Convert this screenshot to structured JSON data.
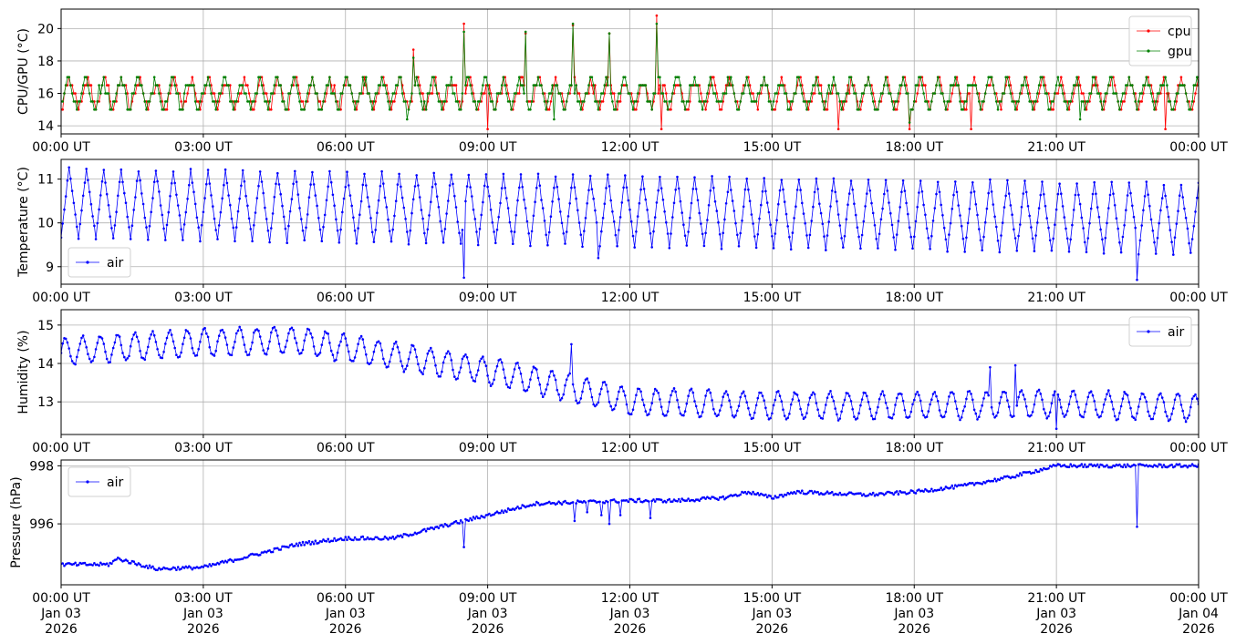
{
  "chart_data": [
    {
      "type": "line",
      "ylabel": "CPU/GPU (°C)",
      "ylim": [
        13.5,
        21.2
      ],
      "yticks": [
        14,
        16,
        18,
        20
      ],
      "x_ticks": [
        "00:00 UT",
        "03:00 UT",
        "06:00 UT",
        "09:00 UT",
        "12:00 UT",
        "15:00 UT",
        "18:00 UT",
        "21:00 UT",
        "00:00 UT"
      ],
      "x_range_hours": [
        0,
        24
      ],
      "grid": true,
      "legend": "top-right",
      "series": [
        {
          "name": "cpu",
          "color": "#ff0000",
          "pattern": {
            "base": 15.0,
            "levels": [
              15.0,
              15.5,
              16.0,
              16.5,
              17.0
            ],
            "period_min": 22
          },
          "spikes": [
            [
              7.45,
              18.7
            ],
            [
              8.5,
              20.3
            ],
            [
              9.8,
              19.7
            ],
            [
              10.8,
              20.2
            ],
            [
              11.55,
              19.7
            ],
            [
              12.55,
              20.8
            ],
            [
              9.0,
              13.8
            ],
            [
              12.65,
              13.8
            ],
            [
              16.4,
              13.8
            ],
            [
              17.9,
              13.8
            ],
            [
              19.2,
              13.8
            ],
            [
              23.3,
              13.8
            ]
          ]
        },
        {
          "name": "gpu",
          "color": "#008000",
          "pattern": {
            "base": 15.0,
            "levels": [
              15.0,
              15.5,
              16.0,
              16.5,
              17.0
            ],
            "period_min": 22
          },
          "spikes": [
            [
              7.45,
              18.2
            ],
            [
              8.5,
              19.8
            ],
            [
              9.8,
              19.8
            ],
            [
              10.8,
              20.3
            ],
            [
              11.55,
              19.7
            ],
            [
              12.55,
              20.3
            ],
            [
              7.3,
              14.4
            ],
            [
              10.4,
              14.4
            ],
            [
              17.9,
              14.2
            ],
            [
              21.5,
              14.4
            ]
          ]
        }
      ]
    },
    {
      "type": "line",
      "ylabel": "Temperature (°C)",
      "ylim": [
        8.6,
        11.45
      ],
      "yticks": [
        9,
        10,
        11
      ],
      "x_ticks": [
        "00:00 UT",
        "03:00 UT",
        "06:00 UT",
        "09:00 UT",
        "12:00 UT",
        "15:00 UT",
        "18:00 UT",
        "21:00 UT",
        "00:00 UT"
      ],
      "x_range_hours": [
        0,
        24
      ],
      "grid": true,
      "legend": "lower-left",
      "series": [
        {
          "name": "air",
          "color": "#0000ff",
          "oscillation": {
            "period_min": 22,
            "mean_start": 10.45,
            "mean_end": 10.1,
            "amp_start": 0.8,
            "amp_end": 0.8
          },
          "spikes": [
            [
              8.5,
              8.75
            ],
            [
              11.35,
              9.2
            ],
            [
              22.7,
              8.7
            ]
          ]
        }
      ]
    },
    {
      "type": "line",
      "ylabel": "Humidity (%)",
      "ylim": [
        12.15,
        15.4
      ],
      "yticks": [
        13,
        14,
        15
      ],
      "x_ticks": [
        "00:00 UT",
        "03:00 UT",
        "06:00 UT",
        "09:00 UT",
        "12:00 UT",
        "15:00 UT",
        "18:00 UT",
        "21:00 UT",
        "00:00 UT"
      ],
      "x_range_hours": [
        0,
        24
      ],
      "grid": true,
      "legend": "top-right",
      "series": [
        {
          "name": "air",
          "color": "#0000ff",
          "trend": [
            [
              0,
              14.3
            ],
            [
              3,
              14.55
            ],
            [
              5,
              14.6
            ],
            [
              7,
              14.2
            ],
            [
              9,
              13.8
            ],
            [
              11,
              13.3
            ],
            [
              12,
              13.0
            ],
            [
              15,
              12.9
            ],
            [
              18,
              12.9
            ],
            [
              21,
              12.95
            ],
            [
              24,
              12.85
            ]
          ],
          "oscillation": {
            "period_min": 22,
            "amp": 0.35
          },
          "spikes": [
            [
              10.75,
              14.5
            ],
            [
              19.6,
              13.9
            ],
            [
              20.15,
              13.95
            ],
            [
              21.0,
              12.3
            ]
          ]
        }
      ]
    },
    {
      "type": "line",
      "ylabel": "Pressure (hPa)",
      "ylim": [
        993.9,
        998.2
      ],
      "yticks": [
        996,
        998
      ],
      "x_ticks": [
        "00:00 UT",
        "03:00 UT",
        "06:00 UT",
        "09:00 UT",
        "12:00 UT",
        "15:00 UT",
        "18:00 UT",
        "21:00 UT",
        "00:00 UT"
      ],
      "x_date_labels": [
        "Jan 03",
        "Jan 03",
        "Jan 03",
        "Jan 03",
        "Jan 03",
        "Jan 03",
        "Jan 03",
        "Jan 03",
        "Jan 04"
      ],
      "x_year_labels": [
        "2026",
        "2026",
        "2026",
        "2026",
        "2026",
        "2026",
        "2026",
        "2026",
        "2026"
      ],
      "x_range_hours": [
        0,
        24
      ],
      "grid": true,
      "legend": "top-left",
      "series": [
        {
          "name": "air",
          "color": "#0000ff",
          "trend": [
            [
              0,
              994.6
            ],
            [
              1,
              994.6
            ],
            [
              1.2,
              994.8
            ],
            [
              2.0,
              994.45
            ],
            [
              3.0,
              994.5
            ],
            [
              4.0,
              994.9
            ],
            [
              5.0,
              995.3
            ],
            [
              6.0,
              995.5
            ],
            [
              7.0,
              995.5
            ],
            [
              8.0,
              995.9
            ],
            [
              9.0,
              996.3
            ],
            [
              10.0,
              996.7
            ],
            [
              11.0,
              996.75
            ],
            [
              12.0,
              996.8
            ],
            [
              13.0,
              996.8
            ],
            [
              14.0,
              996.9
            ],
            [
              14.5,
              997.1
            ],
            [
              15.0,
              996.9
            ],
            [
              15.5,
              997.1
            ],
            [
              17.0,
              997.0
            ],
            [
              18.0,
              997.1
            ],
            [
              19.0,
              997.3
            ],
            [
              20.0,
              997.6
            ],
            [
              21.0,
              998.0
            ],
            [
              22.0,
              998.0
            ],
            [
              24.0,
              998.0
            ]
          ],
          "spikes": [
            [
              8.5,
              995.2
            ],
            [
              10.85,
              996.1
            ],
            [
              11.1,
              996.4
            ],
            [
              11.4,
              996.3
            ],
            [
              11.55,
              996.0
            ],
            [
              11.8,
              996.3
            ],
            [
              12.45,
              996.2
            ],
            [
              22.7,
              995.9
            ]
          ]
        }
      ]
    }
  ]
}
